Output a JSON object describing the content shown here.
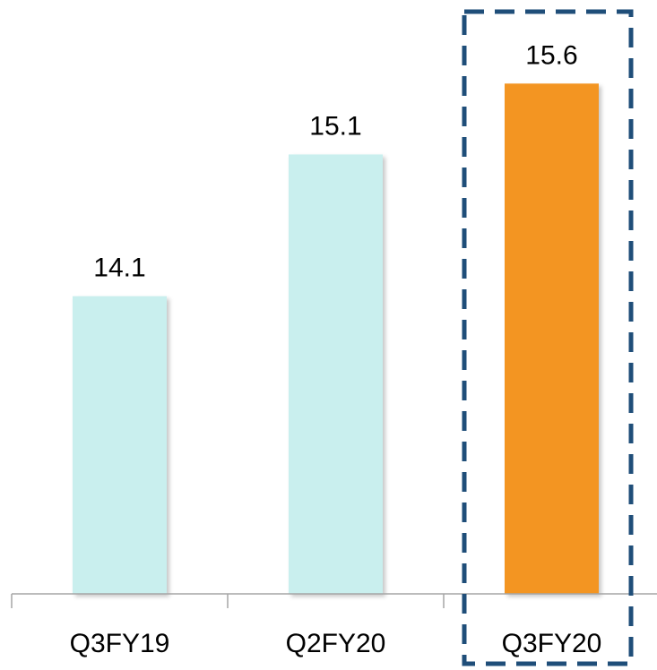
{
  "chart_data": {
    "type": "bar",
    "categories": [
      "Q3FY19",
      "Q2FY20",
      "Q3FY20"
    ],
    "values": [
      14.1,
      15.1,
      15.6
    ],
    "data_labels": [
      "14.1",
      "15.1",
      "15.6"
    ],
    "ylim": [
      12,
      16
    ],
    "grid": false,
    "legend": "none",
    "highlighted_category": "Q3FY20",
    "colors": {
      "default_bar": "#c9efee",
      "highlight_bar": "#f39521",
      "highlight_box": "#1f4e79",
      "axis": "#a6a6a6"
    }
  }
}
